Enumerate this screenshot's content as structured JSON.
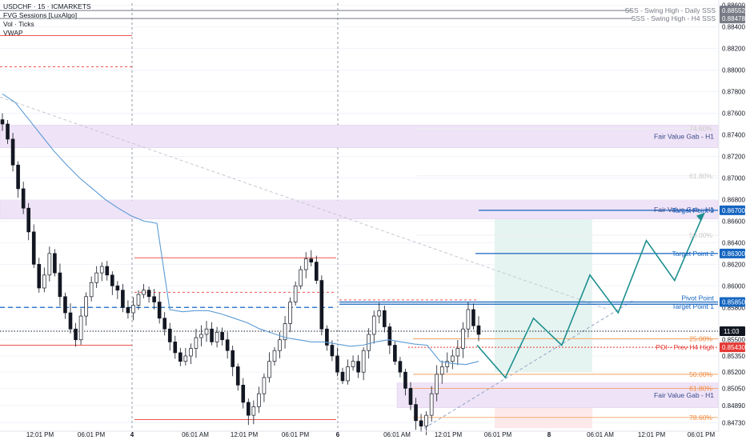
{
  "header": {
    "symbol_line": "USDCHF · 15 · ICMARKETS",
    "indicators": [
      "FVG Sessions [LuxAlgo]",
      "Vol · Ticks",
      "VWAP"
    ]
  },
  "colors": {
    "up": "#131722",
    "down": "#131722",
    "vwap": "#5b9bd5",
    "fvg_fill": "#efe3f7",
    "target_line": "#1565c0",
    "fib_line": "#f4a261",
    "fib_text": "#f08a3c",
    "red_line": "#ef5350",
    "poi": "#e53935",
    "zigzag": "#1e8f8f",
    "tp_zone": "#e6f4f1",
    "sl_zone": "#fde9ea"
  },
  "chart_data": {
    "type": "candlestick",
    "title": "USDCHF · 15 · ICMARKETS",
    "ylim": [
      0.8466,
      0.8862
    ],
    "y_ticks": [
      0.886,
      0.884,
      0.882,
      0.88,
      0.878,
      0.876,
      0.874,
      0.872,
      0.87,
      0.868,
      0.866,
      0.864,
      0.862,
      0.86,
      0.858,
      0.856,
      0.855,
      0.8535,
      0.852,
      0.8505,
      0.8489,
      0.8473
    ],
    "y_tick_labels": [
      "0.88600",
      "0.88400",
      "0.88200",
      "0.88000",
      "0.87800",
      "0.87600",
      "0.87400",
      "0.87200",
      "0.87000",
      "0.86800",
      "0.86600",
      "0.86400",
      "0.86200",
      "0.86000",
      "0.85800",
      "0.85600",
      "0.85500",
      "0.85350",
      "0.85200",
      "0.85050",
      "0.84890",
      "0.84730"
    ],
    "x_labels": [
      "12:01 PM",
      "06:01 PM",
      "4",
      "06:01 AM",
      "12:01 PM",
      "06:01 PM",
      "6",
      "06:01 AM",
      "12:01 PM",
      "06:01 PM",
      "8",
      "06:01 AM",
      "12:01 PM",
      "06:01 PM"
    ],
    "close_series": [
      0.875,
      0.8736,
      0.8712,
      0.869,
      0.8672,
      0.865,
      0.862,
      0.8598,
      0.861,
      0.863,
      0.8612,
      0.859,
      0.8575,
      0.856,
      0.855,
      0.8572,
      0.859,
      0.8603,
      0.8612,
      0.8618,
      0.861,
      0.86,
      0.8596,
      0.858,
      0.8575,
      0.8582,
      0.8592,
      0.8596,
      0.859,
      0.8585,
      0.857,
      0.856,
      0.8548,
      0.8538,
      0.853,
      0.8535,
      0.8542,
      0.8552,
      0.8555,
      0.856,
      0.8548,
      0.8557,
      0.855,
      0.854,
      0.8525,
      0.8508,
      0.8492,
      0.848,
      0.8488,
      0.85,
      0.8515,
      0.853,
      0.854,
      0.855,
      0.8565,
      0.8585,
      0.86,
      0.8615,
      0.8625,
      0.8622,
      0.8605,
      0.856,
      0.8545,
      0.8535,
      0.852,
      0.8512,
      0.8525,
      0.853,
      0.852,
      0.854,
      0.8555,
      0.8572,
      0.8577,
      0.8562,
      0.8545,
      0.853,
      0.852,
      0.8505,
      0.849,
      0.8475,
      0.847,
      0.848,
      0.85,
      0.8518,
      0.8525,
      0.853,
      0.8535,
      0.8542,
      0.856,
      0.8578,
      0.8563,
      0.8555
    ],
    "vwap_series": [
      0.8778,
      0.877,
      0.8755,
      0.874,
      0.8725,
      0.8712,
      0.87,
      0.869,
      0.868,
      0.8672,
      0.8665,
      0.866,
      0.8658,
      0.8578,
      0.8576,
      0.8577,
      0.8577,
      0.8574,
      0.857,
      0.8566,
      0.856,
      0.8556,
      0.8552,
      0.855,
      0.8548,
      0.8548,
      0.8546,
      0.8544,
      0.8545,
      0.8548,
      0.855,
      0.8548,
      0.8546,
      0.8545,
      0.853,
      0.8528,
      0.8527,
      0.853
    ],
    "fib_levels": [
      {
        "label": "78.60%",
        "value": 0.8478
      },
      {
        "label": "61.80%",
        "value": 0.8505
      },
      {
        "label": "50.00%",
        "value": 0.8518
      },
      {
        "label": "25.00%",
        "value": 0.8551
      },
      {
        "label": "50.00%",
        "value": 0.8647
      },
      {
        "label": "61.80%",
        "value": 0.8702
      },
      {
        "label": "74.60%",
        "value": 0.8746
      }
    ],
    "fvg_zones": [
      {
        "label": "Fair Value Gab - H1",
        "low": 0.8728,
        "high": 0.8749
      },
      {
        "label": "Fair Value Gab - H1",
        "low": 0.8662,
        "high": 0.8679
      },
      {
        "label": "Fair Value Gab - H1",
        "low": 0.8487,
        "high": 0.851
      }
    ],
    "targets": [
      {
        "label": "Target Point 3",
        "value": 0.867
      },
      {
        "label": "Target Point 2",
        "value": 0.863
      },
      {
        "label": "Target Point 1",
        "value": 0.8583
      },
      {
        "label": "Pivot Point",
        "value": 0.8585
      }
    ],
    "swing_highs": [
      {
        "label": "SSS - Swing High - Daily SSS",
        "value": 0.88552
      },
      {
        "label": "SSS - Swing High - H4 SSS",
        "value": 0.88478
      }
    ],
    "poi": {
      "label": "POI - Prev H4 High",
      "value": 0.8543
    },
    "current": {
      "value": 0.8558,
      "countdown": "11:03"
    },
    "price_markers": [
      {
        "value": 0.88552,
        "label": "0.88552"
      },
      {
        "value": 0.88478,
        "label": "0.88478"
      },
      {
        "value": 0.867,
        "label": "0.86700"
      },
      {
        "value": 0.863,
        "label": "0.86300"
      },
      {
        "value": 0.8585,
        "label": "0.85850"
      },
      {
        "value": 0.8543,
        "label": "0.85430"
      }
    ],
    "projection": [
      0.8545,
      0.8515,
      0.857,
      0.8545,
      0.861,
      0.8575,
      0.8642,
      0.8605,
      0.8665
    ]
  }
}
